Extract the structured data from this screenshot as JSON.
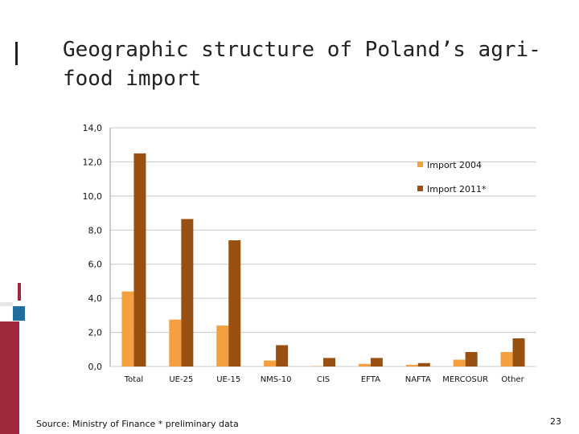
{
  "title": "Geographic structure of Poland’s agri-food import",
  "source_note": "Source: Ministry of Finance  * preliminary data",
  "page_number": "23",
  "colors": {
    "import_2004": "#f4a040",
    "import_2011": "#9a5010",
    "grid": "#c8c8c8"
  },
  "chart_data": {
    "type": "bar",
    "title": "Geographic structure of Poland’s agri-food import",
    "xlabel": "",
    "ylabel": "",
    "ylim": [
      0,
      14
    ],
    "yticks": [
      "0,0",
      "2,0",
      "4,0",
      "6,0",
      "8,0",
      "10,0",
      "12,0",
      "14,0"
    ],
    "categories": [
      "Total",
      "UE-25",
      "UE-15",
      "NMS-10",
      "CIS",
      "EFTA",
      "NAFTA",
      "MERCOSUR",
      "Other"
    ],
    "series": [
      {
        "name": "Import 2004",
        "values": [
          4.4,
          2.75,
          2.4,
          0.35,
          0.02,
          0.15,
          0.1,
          0.4,
          0.85
        ]
      },
      {
        "name": "Import 2011*",
        "values": [
          12.5,
          8.65,
          7.4,
          1.25,
          0.5,
          0.5,
          0.2,
          0.85,
          1.65
        ]
      }
    ],
    "legend": "right",
    "grid": true
  }
}
